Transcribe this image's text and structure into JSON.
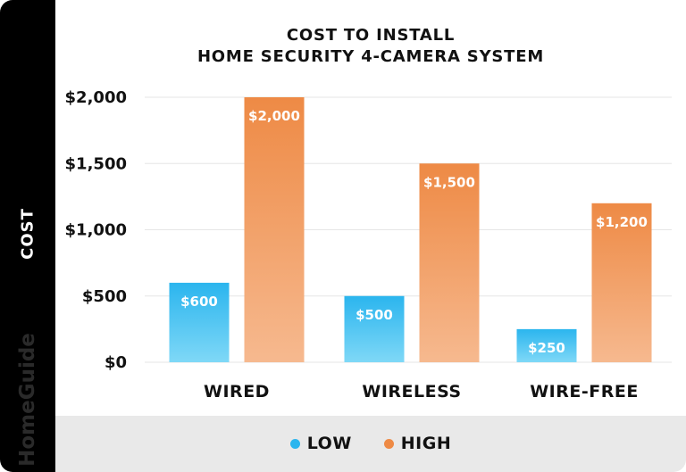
{
  "side": {
    "axis_label": "COST",
    "brand": "HomeGuide"
  },
  "title_line1": "COST TO INSTALL",
  "title_line2": "HOME SECURITY 4-CAMERA SYSTEM",
  "legend": [
    {
      "label": "LOW",
      "color": "#2bb5ee"
    },
    {
      "label": "HIGH",
      "color": "#ee8a45"
    }
  ],
  "chart_data": {
    "type": "bar",
    "title": "COST TO INSTALL HOME SECURITY 4-CAMERA SYSTEM",
    "ylabel": "COST",
    "xlabel": "",
    "categories": [
      "WIRED",
      "WIRELESS",
      "WIRE-FREE"
    ],
    "series": [
      {
        "name": "LOW",
        "values": [
          600,
          500,
          250
        ],
        "labels": [
          "$600",
          "$500",
          "$250"
        ],
        "color_top": "#2bb5ee",
        "color_bottom": "#7fd8f7"
      },
      {
        "name": "HIGH",
        "values": [
          2000,
          1500,
          1200
        ],
        "labels": [
          "$2,000",
          "$1,500",
          "$1,200"
        ],
        "color_top": "#ee8a45",
        "color_bottom": "#f6b98f"
      }
    ],
    "ylim": [
      0,
      2000
    ],
    "yticks": [
      0,
      500,
      1000,
      1500,
      2000
    ],
    "ytick_labels": [
      "$0",
      "$500",
      "$1,000",
      "$1,500",
      "$2,000"
    ],
    "grid": true,
    "legend_position": "bottom"
  }
}
